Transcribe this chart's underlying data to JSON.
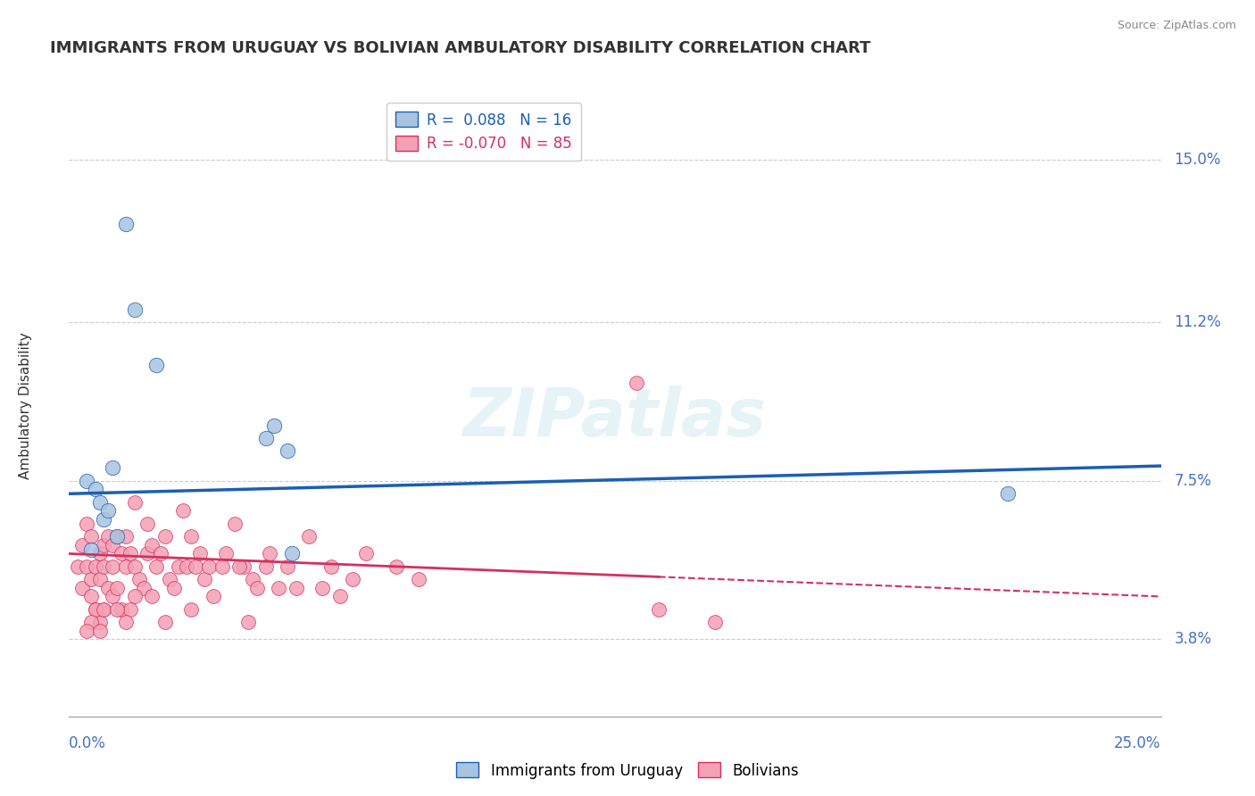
{
  "title": "IMMIGRANTS FROM URUGUAY VS BOLIVIAN AMBULATORY DISABILITY CORRELATION CHART",
  "source": "Source: ZipAtlas.com",
  "ylabel": "Ambulatory Disability",
  "y_ticks": [
    3.8,
    7.5,
    11.2,
    15.0
  ],
  "y_tick_labels": [
    "3.8%",
    "7.5%",
    "11.2%",
    "15.0%"
  ],
  "x_min": 0.0,
  "x_max": 25.0,
  "y_min": 2.0,
  "y_max": 16.5,
  "legend_R1": "0.088",
  "legend_N1": "16",
  "legend_R2": "-0.070",
  "legend_N2": "85",
  "color_uruguay": "#a8c4e0",
  "color_bolivians": "#f4a0b5",
  "color_line_uruguay": "#1a5fb4",
  "color_line_bolivians": "#d43060",
  "color_axis_labels": "#4472c4",
  "watermark": "ZIPatlas",
  "uruguay_x": [
    1.3,
    1.5,
    2.0,
    0.4,
    0.6,
    0.7,
    0.8,
    1.0,
    1.1,
    0.9,
    0.5,
    4.5,
    4.7,
    5.0,
    5.1,
    21.5
  ],
  "uruguay_y": [
    13.5,
    11.5,
    10.2,
    7.5,
    7.3,
    7.0,
    6.6,
    7.8,
    6.2,
    6.8,
    5.9,
    8.5,
    8.8,
    8.2,
    5.8,
    7.2
  ],
  "bolivians_x": [
    0.2,
    0.3,
    0.3,
    0.4,
    0.4,
    0.5,
    0.5,
    0.5,
    0.6,
    0.6,
    0.7,
    0.7,
    0.7,
    0.8,
    0.8,
    0.8,
    0.9,
    0.9,
    1.0,
    1.0,
    1.0,
    1.1,
    1.1,
    1.2,
    1.2,
    1.3,
    1.3,
    1.4,
    1.5,
    1.5,
    1.6,
    1.7,
    1.8,
    1.8,
    1.9,
    2.0,
    2.1,
    2.2,
    2.3,
    2.5,
    2.6,
    2.7,
    2.8,
    2.9,
    3.0,
    3.1,
    3.2,
    3.3,
    3.5,
    3.6,
    3.8,
    4.0,
    4.2,
    4.5,
    4.6,
    4.8,
    5.0,
    5.2,
    5.5,
    5.8,
    6.0,
    6.2,
    6.5,
    6.8,
    7.5,
    8.0,
    2.4,
    3.9,
    4.3,
    1.4,
    0.6,
    0.5,
    0.4,
    0.7,
    0.8,
    1.1,
    1.3,
    1.5,
    2.2,
    13.5,
    14.8,
    1.9,
    2.8,
    4.1,
    13.0
  ],
  "bolivians_y": [
    5.5,
    5.0,
    6.0,
    5.5,
    6.5,
    5.2,
    4.8,
    6.2,
    5.5,
    4.5,
    5.8,
    5.2,
    4.2,
    6.0,
    5.5,
    4.5,
    6.2,
    5.0,
    6.0,
    5.5,
    4.8,
    6.2,
    5.0,
    5.8,
    4.5,
    5.5,
    6.2,
    5.8,
    7.0,
    5.5,
    5.2,
    5.0,
    6.5,
    5.8,
    6.0,
    5.5,
    5.8,
    6.2,
    5.2,
    5.5,
    6.8,
    5.5,
    6.2,
    5.5,
    5.8,
    5.2,
    5.5,
    4.8,
    5.5,
    5.8,
    6.5,
    5.5,
    5.2,
    5.5,
    5.8,
    5.0,
    5.5,
    5.0,
    6.2,
    5.0,
    5.5,
    4.8,
    5.2,
    5.8,
    5.5,
    5.2,
    5.0,
    5.5,
    5.0,
    4.5,
    4.5,
    4.2,
    4.0,
    4.0,
    4.5,
    4.5,
    4.2,
    4.8,
    4.2,
    4.5,
    4.2,
    4.8,
    4.5,
    4.2,
    9.8
  ],
  "bol_solid_end": 13.5,
  "uru_line_x": [
    0.0,
    25.0
  ],
  "uru_line_y": [
    7.2,
    7.85
  ],
  "bol_line_x": [
    0.0,
    25.0
  ],
  "bol_line_y": [
    5.8,
    4.8
  ]
}
